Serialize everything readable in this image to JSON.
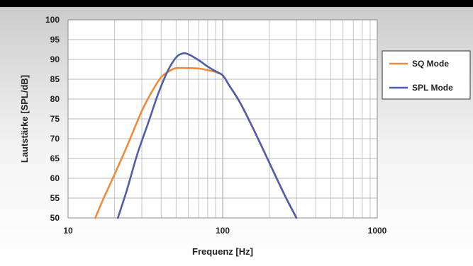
{
  "chart_data": {
    "type": "line",
    "xlabel": "Frequenz [Hz]",
    "ylabel": "Lautstärke [SPL/dB]",
    "x_scale": "log",
    "xlim": [
      10,
      1000
    ],
    "ylim": [
      50,
      100
    ],
    "x_tick_labels": [
      "10",
      "100",
      "1000"
    ],
    "y_tick_labels": [
      "50",
      "55",
      "60",
      "65",
      "70",
      "75",
      "80",
      "85",
      "90",
      "95",
      "100"
    ],
    "grid": true,
    "legend_position": "right",
    "series": [
      {
        "name": "SQ Mode",
        "color": "#f08a3c",
        "x": [
          15,
          17,
          20,
          24,
          30,
          35,
          40,
          45,
          50,
          60,
          70,
          80,
          90,
          100,
          110,
          130,
          160,
          200,
          250,
          300
        ],
        "y": [
          50,
          55,
          61,
          68,
          77,
          82,
          85.5,
          87,
          87.8,
          87.8,
          87.7,
          87.3,
          86.8,
          86,
          83.5,
          79,
          72,
          64,
          56,
          50
        ]
      },
      {
        "name": "SPL Mode",
        "color": "#4f5eac",
        "x": [
          21,
          24,
          28,
          33,
          38,
          44,
          50,
          55,
          60,
          70,
          80,
          90,
          100,
          110,
          130,
          160,
          200,
          250,
          300
        ],
        "y": [
          50,
          57,
          66,
          74,
          81,
          87,
          90.5,
          91.5,
          91.3,
          89.8,
          88.2,
          87,
          86,
          83.5,
          79,
          72,
          64,
          56,
          50
        ]
      }
    ]
  }
}
